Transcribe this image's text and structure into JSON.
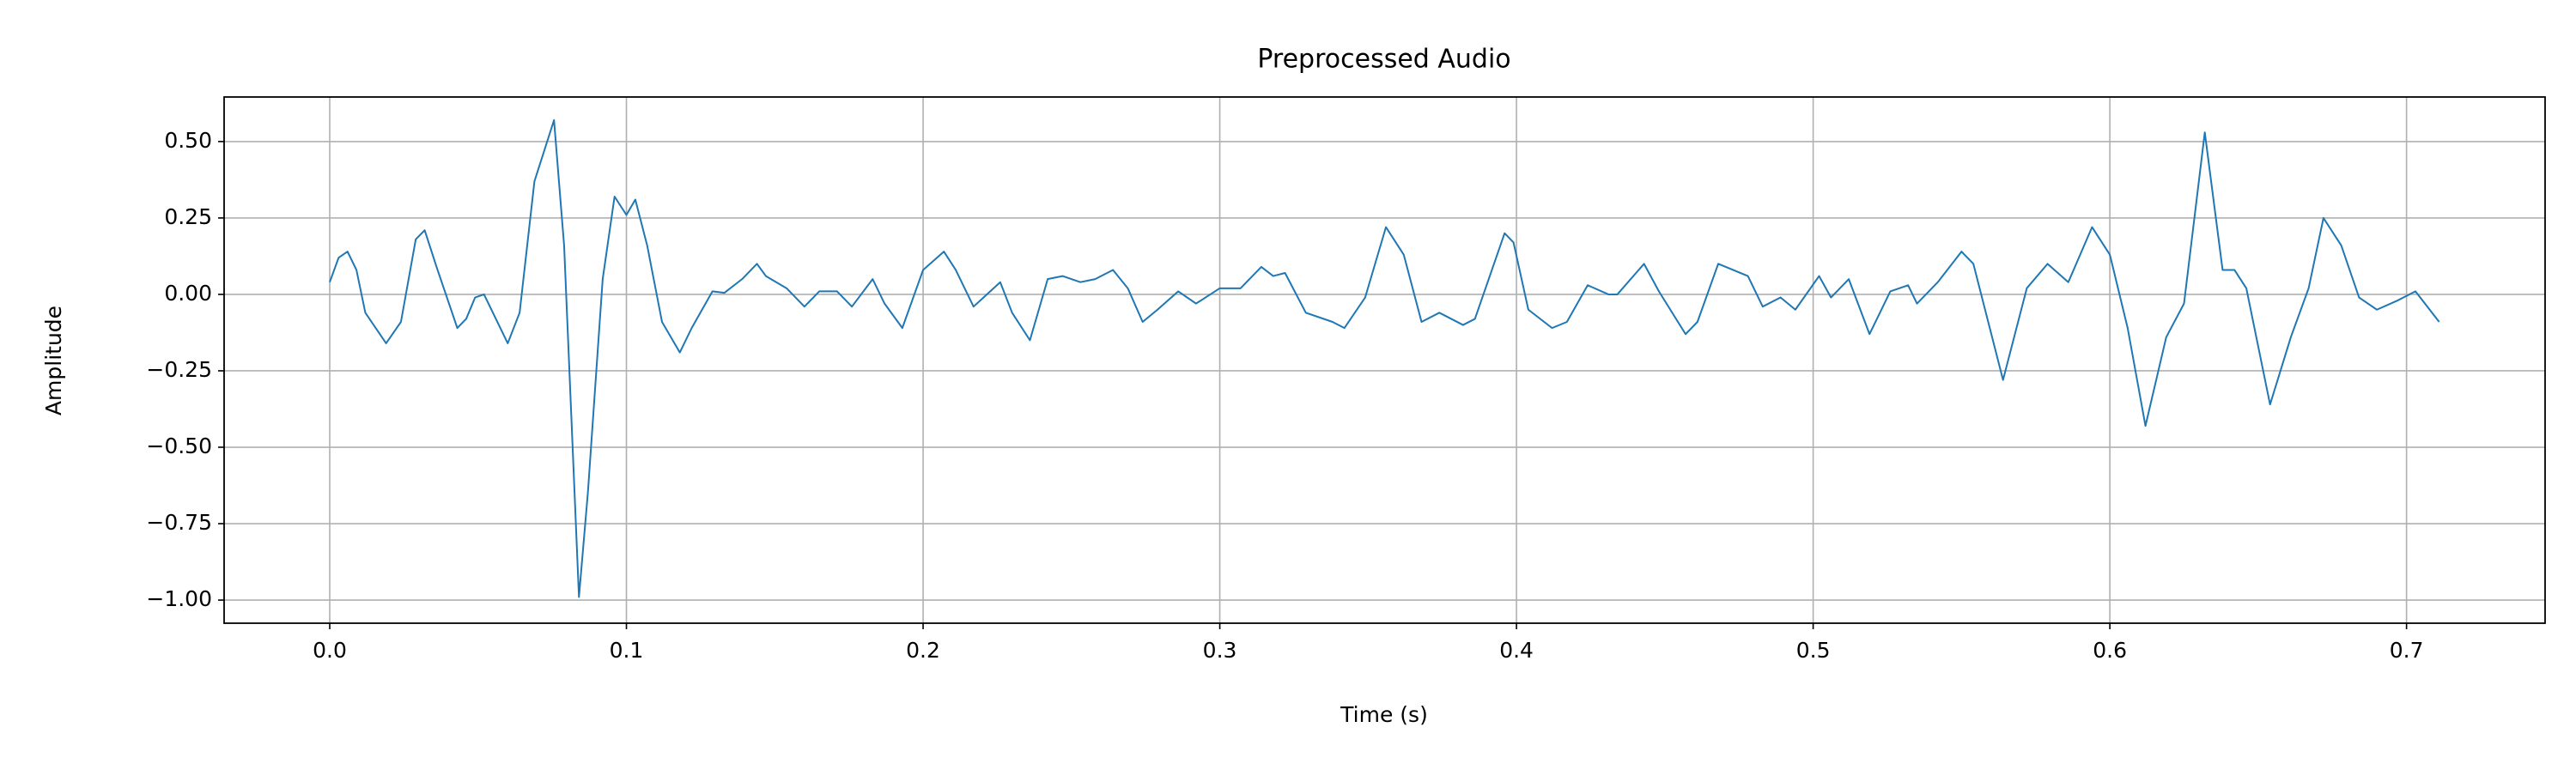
{
  "chart_data": {
    "type": "line",
    "title": "Preprocessed Audio",
    "xlabel": "Time (s)",
    "ylabel": "Amplitude",
    "grid": true,
    "xlim": [
      -0.0356,
      0.7467
    ],
    "ylim": [
      -1.0756,
      0.6457
    ],
    "xticks": [
      {
        "value": 0,
        "label": "0.0"
      },
      0.1,
      0.2,
      0.3,
      0.4,
      0.5,
      0.6,
      0.7
    ],
    "yticks": [
      {
        "value": -1.0,
        "label": "−1.00"
      },
      {
        "value": -0.75,
        "label": "−0.75"
      },
      {
        "value": -0.5,
        "label": "−0.50"
      },
      {
        "value": -0.25,
        "label": "−0.25"
      },
      {
        "value": 0,
        "label": "0.00"
      },
      {
        "value": 0.25,
        "label": "0.25"
      },
      {
        "value": 0.5,
        "label": "0.50"
      }
    ],
    "series": [
      {
        "color": "#1f77b4",
        "x": [
          0.0,
          0.003,
          0.006,
          0.009,
          0.012,
          0.019,
          0.024,
          0.029,
          0.032,
          0.036,
          0.043,
          0.046,
          0.049,
          0.052,
          0.055,
          0.06,
          0.064,
          0.069,
          0.0756,
          0.079,
          0.084,
          0.087,
          0.092,
          0.096,
          0.1,
          0.103,
          0.107,
          0.112,
          0.118,
          0.122,
          0.129,
          0.133,
          0.139,
          0.144,
          0.147,
          0.154,
          0.16,
          0.165,
          0.171,
          0.176,
          0.183,
          0.187,
          0.193,
          0.2,
          0.207,
          0.211,
          0.217,
          0.226,
          0.23,
          0.236,
          0.242,
          0.247,
          0.253,
          0.258,
          0.264,
          0.269,
          0.274,
          0.279,
          0.286,
          0.292,
          0.3,
          0.307,
          0.314,
          0.318,
          0.322,
          0.329,
          0.338,
          0.342,
          0.349,
          0.356,
          0.362,
          0.368,
          0.374,
          0.382,
          0.386,
          0.396,
          0.399,
          0.404,
          0.412,
          0.417,
          0.424,
          0.431,
          0.434,
          0.443,
          0.448,
          0.457,
          0.461,
          0.468,
          0.478,
          0.483,
          0.489,
          0.494,
          0.502,
          0.506,
          0.512,
          0.519,
          0.526,
          0.532,
          0.535,
          0.542,
          0.55,
          0.554,
          0.564,
          0.572,
          0.579,
          0.586,
          0.594,
          0.6,
          0.606,
          0.612,
          0.619,
          0.625,
          0.632,
          0.638,
          0.642,
          0.646,
          0.654,
          0.661,
          0.667,
          0.672,
          0.678,
          0.684,
          0.69,
          0.697,
          0.703,
          0.711
        ],
        "values": [
          0.04,
          0.12,
          0.14,
          0.08,
          -0.06,
          -0.16,
          -0.09,
          0.18,
          0.21,
          0.09,
          -0.11,
          -0.08,
          -0.01,
          0.0,
          -0.06,
          -0.16,
          -0.06,
          0.37,
          0.57,
          0.16,
          -0.99,
          -0.65,
          0.05,
          0.32,
          0.26,
          0.31,
          0.16,
          -0.09,
          -0.19,
          -0.11,
          0.01,
          0.005,
          0.05,
          0.1,
          0.06,
          0.02,
          -0.04,
          0.01,
          0.01,
          -0.04,
          0.05,
          -0.03,
          -0.11,
          0.08,
          0.14,
          0.08,
          -0.04,
          0.04,
          -0.06,
          -0.15,
          0.05,
          0.06,
          0.04,
          0.05,
          0.08,
          0.02,
          -0.09,
          -0.05,
          0.01,
          -0.03,
          0.02,
          0.02,
          0.09,
          0.06,
          0.07,
          -0.06,
          -0.09,
          -0.11,
          -0.01,
          0.22,
          0.13,
          -0.09,
          -0.06,
          -0.1,
          -0.08,
          0.2,
          0.17,
          -0.05,
          -0.11,
          -0.09,
          0.03,
          0.0,
          0.0,
          0.1,
          0.01,
          -0.13,
          -0.09,
          0.1,
          0.06,
          -0.04,
          -0.01,
          -0.05,
          0.06,
          -0.01,
          0.05,
          -0.13,
          0.01,
          0.03,
          -0.03,
          0.04,
          0.14,
          0.1,
          -0.28,
          0.02,
          0.1,
          0.04,
          0.22,
          0.13,
          -0.11,
          -0.43,
          -0.14,
          -0.03,
          0.53,
          0.08,
          0.08,
          0.02,
          -0.36,
          -0.14,
          0.02,
          0.25,
          0.16,
          -0.01,
          -0.05,
          -0.02,
          0.01,
          -0.09
        ]
      }
    ]
  }
}
